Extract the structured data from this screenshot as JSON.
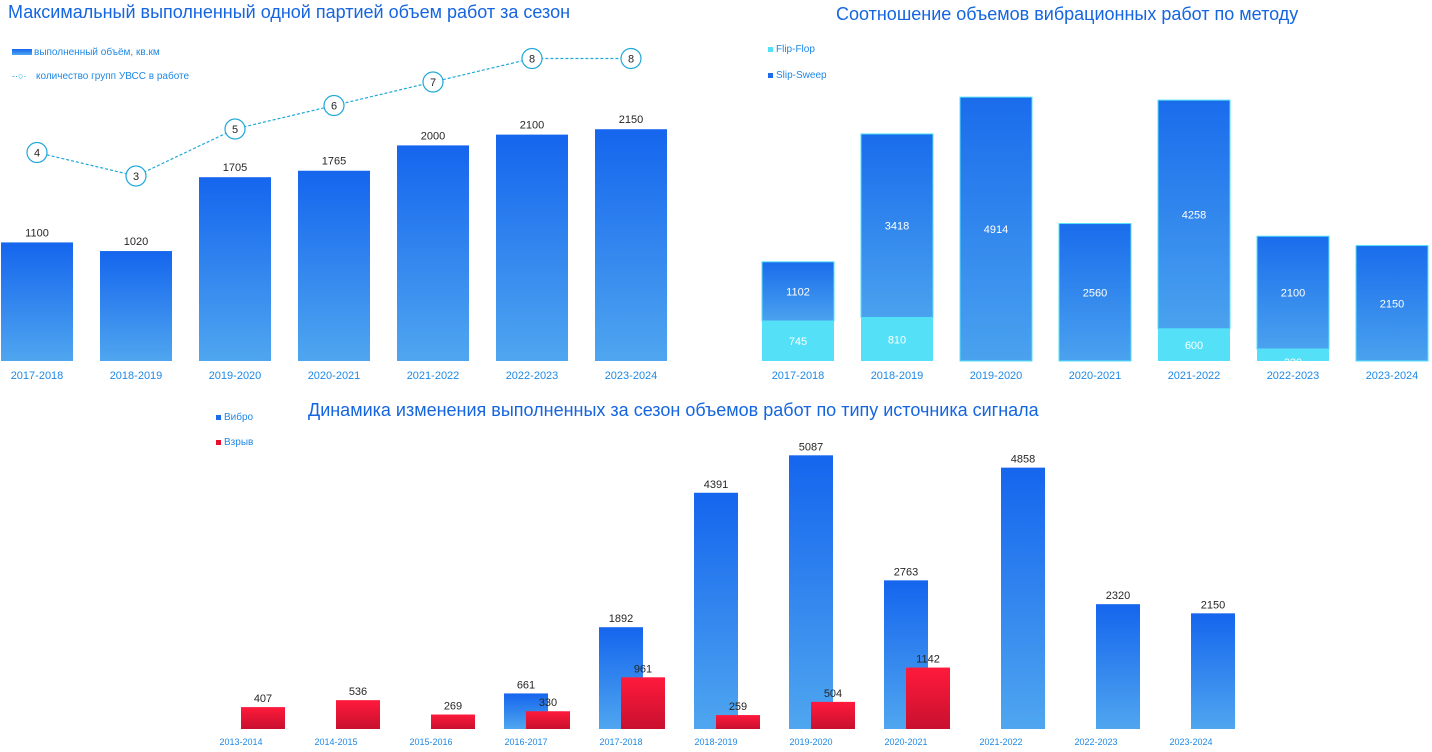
{
  "chart_data": [
    {
      "type": "bar",
      "title": "Максимальный выполненный одной партией объем работ за сезон",
      "categories": [
        "2017-2018",
        "2018-2019",
        "2019-2020",
        "2020-2021",
        "2021-2022",
        "2022-2023",
        "2023-2024"
      ],
      "series": [
        {
          "name": "выполненный объём, кв.км",
          "type": "bar",
          "values": [
            1100,
            1020,
            1705,
            1765,
            2000,
            2100,
            2150
          ]
        },
        {
          "name": "количество групп УВСС в работе",
          "type": "line",
          "values": [
            4,
            3,
            5,
            6,
            7,
            8,
            8
          ]
        }
      ],
      "ylim": [
        0,
        2400
      ],
      "legend": "top-left",
      "grid": false
    },
    {
      "type": "bar",
      "stacked": true,
      "title": "Соотношение объемов вибрационных работ по методу",
      "categories": [
        "2017-2018",
        "2018-2019",
        "2019-2020",
        "2020-2021",
        "2021-2022",
        "2022-2023",
        "2023-2024"
      ],
      "series": [
        {
          "name": "Flip-Flop",
          "values": [
            745,
            810,
            null,
            null,
            600,
            220,
            null
          ]
        },
        {
          "name": "Slip-Sweep",
          "values": [
            1102,
            3418,
            4914,
            2560,
            4258,
            2100,
            2150
          ]
        }
      ],
      "ylim": [
        0,
        5200
      ],
      "legend": "top-left",
      "grid": false
    },
    {
      "type": "bar",
      "title": "Динамика изменения выполненных за сезон объемов работ по типу источника сигнала",
      "categories": [
        "2013-2014",
        "2014-2015",
        "2015-2016",
        "2016-2017",
        "2017-2018",
        "2018-2019",
        "2019-2020",
        "2020-2021",
        "2021-2022",
        "2022-2023",
        "2023-2024"
      ],
      "series": [
        {
          "name": "Вибро",
          "values": [
            null,
            null,
            null,
            661,
            1892,
            4391,
            5087,
            2763,
            4858,
            2320,
            2150
          ]
        },
        {
          "name": "Взрыв",
          "values": [
            407,
            536,
            269,
            330,
            961,
            259,
            504,
            1142,
            null,
            null,
            null
          ]
        }
      ],
      "ylim": [
        0,
        5200
      ],
      "legend": "top-left",
      "grid": false
    }
  ],
  "colors": {
    "title": "#1565e0",
    "bar_top": "#1565ee",
    "bar_bottom": "#4fa6ef",
    "slip_sweep_top": "#1a6cec",
    "slip_sweep_bottom": "#4aa2ee",
    "flip_flop": "#54e0f6",
    "vzryv_top": "#ff1a3c",
    "vzryv_bottom": "#c8102e",
    "line": "#1fa8d8",
    "label": "#262626",
    "axis_label": "#1e88e5"
  }
}
